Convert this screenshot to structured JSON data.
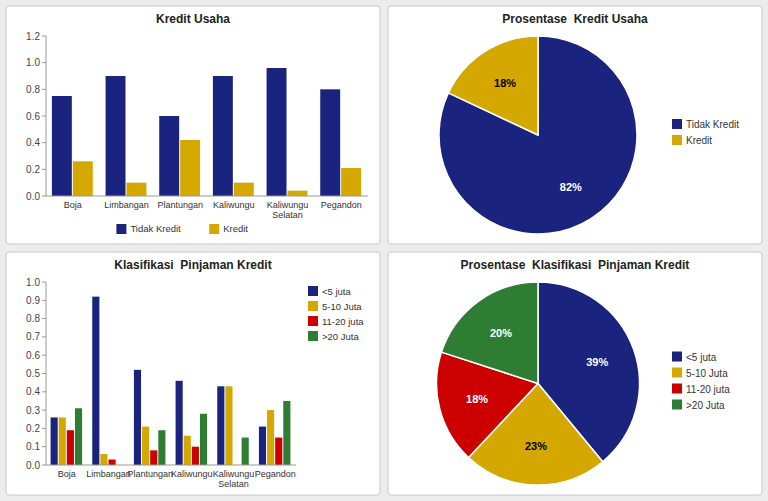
{
  "chart_data": [
    {
      "type": "bar",
      "title": "Kredit Usaha",
      "categories": [
        "Boja",
        "Limbangan",
        "Plantungan",
        "Kaliwungu",
        "Kaliwungu\nSelatan",
        "Pegandon"
      ],
      "series": [
        {
          "name": "Tidak Kredit",
          "color": "#1a237e",
          "values": [
            0.75,
            0.9,
            0.6,
            0.9,
            0.96,
            0.8
          ]
        },
        {
          "name": "Kredit",
          "color": "#d4a800",
          "values": [
            0.26,
            0.1,
            0.42,
            0.1,
            0.04,
            0.21
          ]
        }
      ],
      "ylim": [
        0,
        1.2
      ],
      "yticks": [
        {
          "value": 0,
          "label": "0.0"
        },
        0.2,
        0.4,
        0.6,
        0.8,
        {
          "value": 1.0,
          "label": "1.0"
        },
        1.2
      ],
      "grid": false,
      "legend": "bottom"
    },
    {
      "type": "pie",
      "title": "Prosentase  Kredit Usaha",
      "categories": [
        "Tidak Kredit",
        "Kredit"
      ],
      "values": [
        82,
        18
      ],
      "value_labels": [
        "82%",
        "18%"
      ],
      "colors": [
        "#1a237e",
        "#d4a800"
      ],
      "data_labels": true,
      "legend": "right"
    },
    {
      "type": "bar",
      "title": "Klasifikasi  Pinjaman Kredit",
      "categories": [
        "Boja",
        "Limbangan",
        "Plantungan",
        "Kaliwungu",
        "Kaliwungu\nSelatan",
        "Pegandon"
      ],
      "series": [
        {
          "name": "<5 juta",
          "color": "#1a237e",
          "values": [
            0.26,
            0.92,
            0.52,
            0.46,
            0.43,
            0.21
          ]
        },
        {
          "name": "5-10 Juta",
          "color": "#d4a800",
          "values": [
            0.26,
            0.06,
            0.21,
            0.16,
            0.43,
            0.3
          ]
        },
        {
          "name": "11-20 juta",
          "color": "#cc0000",
          "values": [
            0.19,
            0.03,
            0.08,
            0.1,
            0.0,
            0.15
          ]
        },
        {
          "name": ">20 Juta",
          "color": "#2e7d32",
          "values": [
            0.31,
            0.0,
            0.19,
            0.28,
            0.15,
            0.35
          ]
        }
      ],
      "ylim": [
        0,
        1.0
      ],
      "yticks": [
        {
          "value": 0,
          "label": "0.0"
        },
        0.1,
        0.2,
        0.3,
        0.4,
        0.5,
        0.6,
        0.7,
        0.8,
        0.9,
        {
          "value": 1.0,
          "label": "1.0"
        }
      ],
      "grid": false,
      "legend": "upper right"
    },
    {
      "type": "pie",
      "title": "Prosentase  Klasifikasi  Pinjaman Kredit",
      "categories": [
        "<5 juta",
        "5-10 Juta",
        "11-20 juta",
        ">20 Juta"
      ],
      "values": [
        39,
        23,
        18,
        20
      ],
      "value_labels": [
        "39%",
        "23%",
        "18%",
        "20%"
      ],
      "colors": [
        "#1a237e",
        "#d4a800",
        "#cc0000",
        "#2e7d32"
      ],
      "data_labels": true,
      "legend": "right"
    }
  ]
}
